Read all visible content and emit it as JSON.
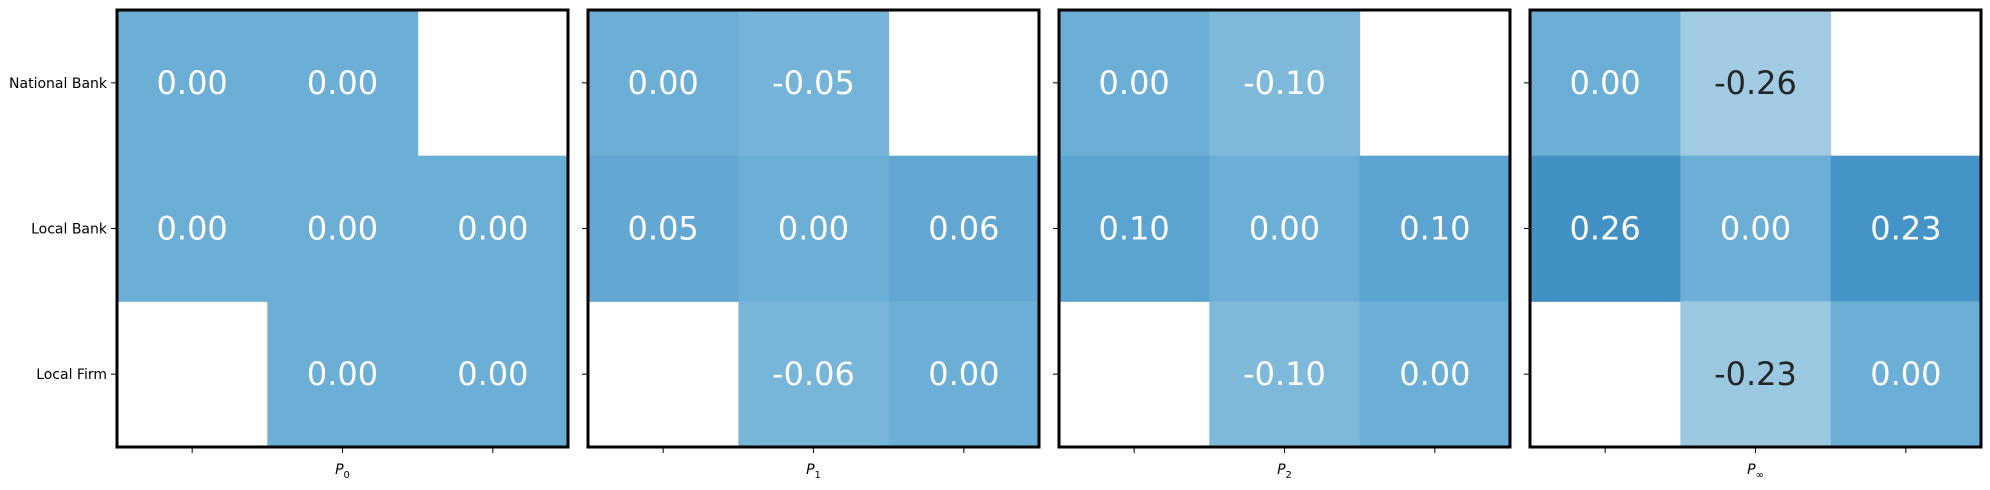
{
  "chart_data": {
    "type": "heatmap",
    "row_labels": [
      "National Bank",
      "Local Bank",
      "Local Firm"
    ],
    "panels": [
      {
        "xlabel_base": "P",
        "xlabel_sub": "0",
        "values": [
          [
            0.0,
            0.0,
            null
          ],
          [
            0.0,
            0.0,
            0.0
          ],
          [
            null,
            0.0,
            0.0
          ]
        ]
      },
      {
        "xlabel_base": "P",
        "xlabel_sub": "1",
        "values": [
          [
            0.0,
            -0.05,
            null
          ],
          [
            0.05,
            0.0,
            0.06
          ],
          [
            null,
            -0.06,
            0.0
          ]
        ]
      },
      {
        "xlabel_base": "P",
        "xlabel_sub": "2",
        "values": [
          [
            0.0,
            -0.1,
            null
          ],
          [
            0.1,
            0.0,
            0.1
          ],
          [
            null,
            -0.1,
            0.0
          ]
        ]
      },
      {
        "xlabel_base": "P",
        "xlabel_sub": "∞",
        "values": [
          [
            0.0,
            -0.26,
            null
          ],
          [
            0.26,
            0.0,
            0.23
          ],
          [
            null,
            -0.23,
            0.0
          ]
        ]
      }
    ],
    "colormap": "Blues",
    "color_range": [
      -1,
      1
    ],
    "colors": {
      "text_light": "#ffffff",
      "text_dark": "#262626",
      "masked": "#ffffff"
    },
    "value_format": "2 decimals",
    "grid": false,
    "legend": "none"
  }
}
